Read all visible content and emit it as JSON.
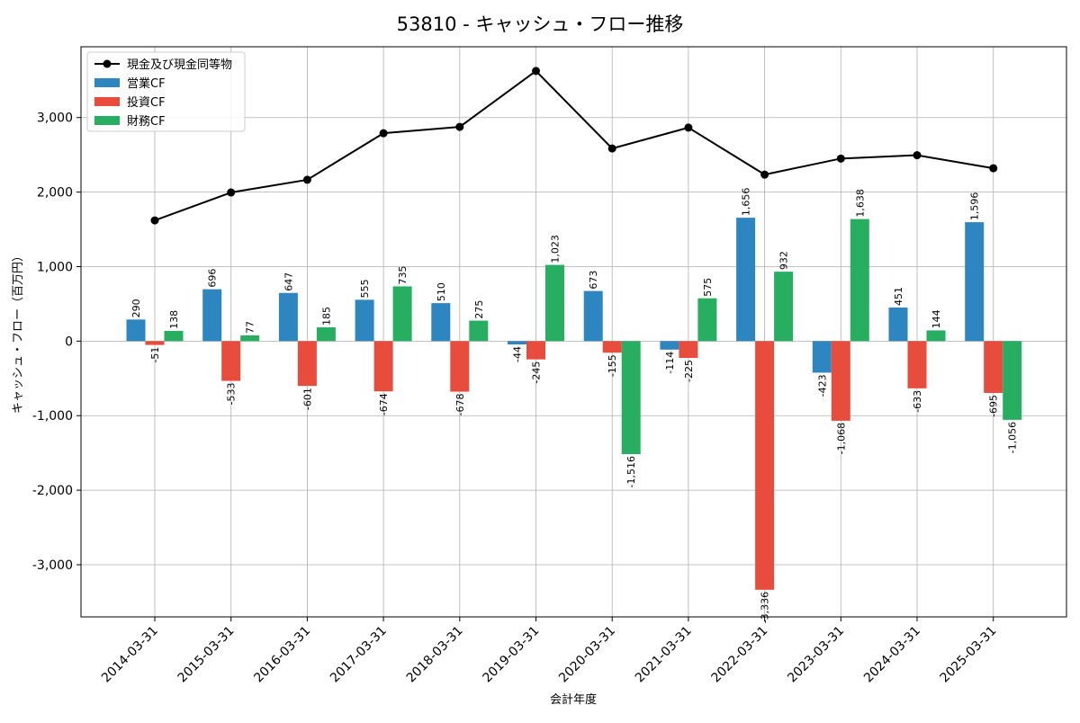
{
  "chart_data": {
    "type": "bar",
    "title": "53810 - キャッシュ・フロー推移",
    "xlabel": "会計年度",
    "ylabel": "キャッシュ・フロー（百万円）",
    "ylim": [
      -3700,
      3950
    ],
    "y_ticks": [
      -3000,
      -2000,
      -1000,
      0,
      1000,
      2000,
      3000
    ],
    "y_tick_labels": [
      "-3,000",
      "-2,000",
      "-1,000",
      "0",
      "1,000",
      "2,000",
      "3,000"
    ],
    "grid": true,
    "legend_position": "top-left",
    "categories": [
      "2014-03-31",
      "2015-03-31",
      "2016-03-31",
      "2017-03-31",
      "2018-03-31",
      "2019-03-31",
      "2020-03-31",
      "2021-03-31",
      "2022-03-31",
      "2023-03-31",
      "2024-03-31",
      "2025-03-31"
    ],
    "series": [
      {
        "name": "営業CF",
        "kind": "bar",
        "color": "#2e86c1",
        "values": [
          290,
          696,
          647,
          555,
          510,
          -44,
          673,
          -114,
          1656,
          -423,
          451,
          1596
        ],
        "labels": [
          "290",
          "696",
          "647",
          "555",
          "510",
          "-44",
          "673",
          "-114",
          "1,656",
          "-423",
          "451",
          "1,596"
        ]
      },
      {
        "name": "投資CF",
        "kind": "bar",
        "color": "#e74c3c",
        "values": [
          -51,
          -533,
          -601,
          -674,
          -678,
          -245,
          -155,
          -225,
          -3336,
          -1068,
          -633,
          -695
        ],
        "labels": [
          "-51",
          "-533",
          "-601",
          "-674",
          "-678",
          "-245",
          "-155",
          "-225",
          "-3,336",
          "-1,068",
          "-633",
          "-695"
        ]
      },
      {
        "name": "財務CF",
        "kind": "bar",
        "color": "#27ae60",
        "values": [
          138,
          77,
          185,
          735,
          275,
          1023,
          -1516,
          575,
          932,
          1638,
          144,
          -1056
        ],
        "labels": [
          "138",
          "77",
          "185",
          "735",
          "275",
          "1,023",
          "-1,516",
          "575",
          "932",
          "1,638",
          "144",
          "-1,056"
        ]
      },
      {
        "name": "現金及び現金同等物",
        "kind": "line",
        "color": "#000000",
        "values": [
          1620,
          1995,
          2165,
          2790,
          2875,
          3625,
          2585,
          2865,
          2235,
          2450,
          2495,
          2320
        ]
      }
    ]
  }
}
